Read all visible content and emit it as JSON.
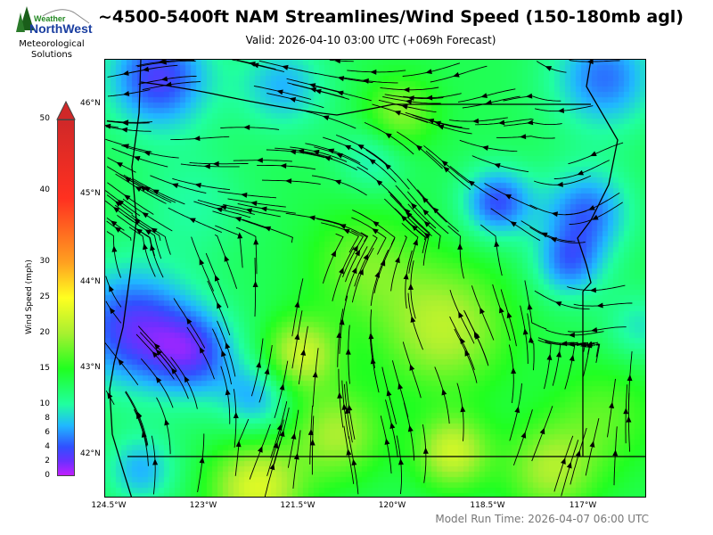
{
  "header": {
    "title": "~4500-5400ft NAM Streamlines/Wind Speed (150-180mb agl)",
    "subtitle": "Valid: 2026-04-10 03:00 UTC  (+069h Forecast)"
  },
  "logo": {
    "brand_top": "Weather",
    "brand_main": "NorthWest",
    "line1": "Meteorological",
    "line2": "Solutions"
  },
  "colorbar": {
    "label": "Wind Speed (mph)",
    "ticks": [
      "0",
      "2",
      "4",
      "6",
      "8",
      "10",
      "15",
      "20",
      "25",
      "30",
      "40",
      "50"
    ],
    "tick_values": [
      0,
      2,
      4,
      6,
      8,
      10,
      15,
      20,
      25,
      30,
      40,
      50
    ],
    "range": [
      0,
      50
    ],
    "extend": "max",
    "colors": {
      "0": "#c020ff",
      "4": "#3050ff",
      "8": "#20b8ff",
      "10": "#20ffa0",
      "15": "#20ff20",
      "20": "#a8f030",
      "25": "#ffff20",
      "30": "#ffa020",
      "40": "#ff3020",
      "50": "#d02828"
    }
  },
  "map": {
    "lon_ticks": [
      "124.5°W",
      "123°W",
      "121.5°W",
      "120°W",
      "118.5°W",
      "117°W"
    ],
    "lat_ticks": [
      "46°N",
      "45°N",
      "44°N",
      "43°N",
      "42°N"
    ],
    "lon_range": [
      -124.55,
      -116.3
    ],
    "lat_range": [
      41.55,
      46.5
    ]
  },
  "footer": {
    "model_run": "Model Run Time: 2026-04-07 06:00 UTC"
  }
}
